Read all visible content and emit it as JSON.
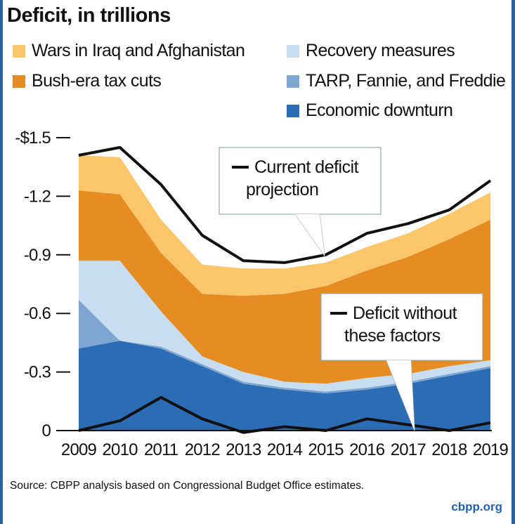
{
  "chart_data": {
    "type": "area",
    "title": "Deficit, in trillions",
    "x": [
      "2009",
      "2010",
      "2011",
      "2012",
      "2013",
      "2014",
      "2015",
      "2016",
      "2017",
      "2018",
      "2019"
    ],
    "y_ticks": [
      "-$1.5",
      "-1.2",
      "-0.9",
      "-0.6",
      "-0.3",
      "0"
    ],
    "ylim": [
      0,
      -1.5
    ],
    "series": [
      {
        "name": "Wars in Iraq and Afghanistan",
        "color": "#fbc66a",
        "values": [
          0.18,
          0.19,
          0.17,
          0.15,
          0.14,
          0.13,
          0.12,
          0.12,
          0.12,
          0.13,
          0.14
        ]
      },
      {
        "name": "Bush-era tax cuts",
        "color": "#e58d22",
        "values": [
          0.36,
          0.34,
          0.3,
          0.32,
          0.39,
          0.45,
          0.5,
          0.55,
          0.6,
          0.65,
          0.72
        ]
      },
      {
        "name": "Recovery measures",
        "color": "#c9ddf1",
        "values": [
          0.2,
          0.41,
          0.18,
          0.04,
          0.05,
          0.03,
          0.04,
          0.05,
          0.04,
          0.04,
          0.03
        ]
      },
      {
        "name": "TARP, Fannie, and Freddie",
        "color": "#7ea6d0",
        "values": [
          0.25,
          0,
          0.01,
          0.01,
          0.01,
          0.01,
          0.01,
          0.01,
          0.01,
          0.01,
          0.01
        ]
      },
      {
        "name": "Economic downturn",
        "color": "#2c6cb4",
        "values": [
          0.42,
          0.46,
          0.42,
          0.33,
          0.24,
          0.21,
          0.19,
          0.21,
          0.24,
          0.28,
          0.32
        ]
      }
    ],
    "lines": [
      {
        "name": "Current deficit projection",
        "values": [
          1.41,
          1.45,
          1.26,
          1.0,
          0.87,
          0.86,
          0.9,
          1.01,
          1.06,
          1.13,
          1.28
        ]
      },
      {
        "name": "Deficit without these factors",
        "values": [
          0.0,
          0.05,
          0.17,
          0.06,
          -0.01,
          0.02,
          0.0,
          0.06,
          0.03,
          0.0,
          0.04
        ]
      }
    ],
    "annotations": [
      {
        "text": "Current deficit projection",
        "lines": [
          "Current deficit",
          "projection"
        ]
      },
      {
        "text": "Deficit without these factors",
        "lines": [
          "Deficit without",
          "these factors"
        ]
      }
    ],
    "legend": "top"
  },
  "source": "Source: CBPP analysis based on Congressional Budget Office estimates.",
  "brand": "cbpp.org"
}
